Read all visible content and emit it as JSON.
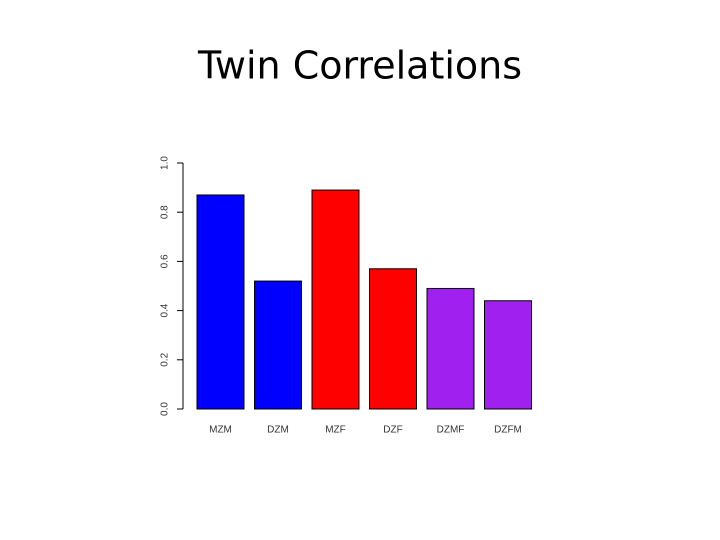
{
  "chart_data": {
    "type": "bar",
    "title": "Twin Correlations",
    "categories": [
      "MZM",
      "DZM",
      "MZF",
      "DZF",
      "DZMF",
      "DZFM"
    ],
    "values": [
      0.87,
      0.52,
      0.89,
      0.57,
      0.49,
      0.44
    ],
    "colors": [
      "#0000ff",
      "#0000ff",
      "#ff0000",
      "#ff0000",
      "#a020f0",
      "#a020f0"
    ],
    "ylim": [
      0,
      1
    ],
    "yticks": [
      {
        "value": 0,
        "label": "0.0"
      },
      0.2,
      0.4,
      0.6,
      0.8,
      {
        "value": 1,
        "label": "1.0"
      }
    ]
  }
}
